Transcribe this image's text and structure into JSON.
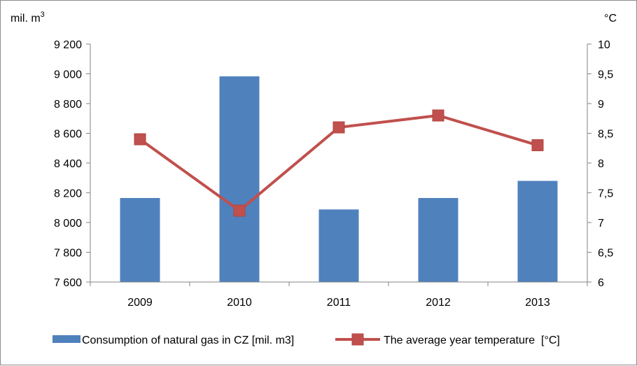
{
  "chart_data": {
    "type": "bar",
    "categories": [
      "2009",
      "2010",
      "2011",
      "2012",
      "2013"
    ],
    "series": [
      {
        "name": "Consumption of natural gas in CZ [mil. m3]",
        "type": "bar",
        "axis": "left",
        "color": "#4F81BD",
        "values": [
          8165,
          8983,
          8088,
          8165,
          8280
        ]
      },
      {
        "name": "The average year temperature  [°C]",
        "type": "line",
        "axis": "right",
        "color": "#C0504D",
        "values": [
          8.4,
          7.2,
          8.6,
          8.8,
          8.3
        ]
      }
    ],
    "y_left": {
      "unit_main": "mil. m",
      "unit_sup": "3",
      "ylim": [
        7600,
        9200
      ],
      "ticks": [
        7600,
        7800,
        8000,
        8200,
        8400,
        8600,
        8800,
        9000,
        9200
      ],
      "tick_labels": [
        "7 600",
        "7 800",
        "8 000",
        "8 200",
        "8 400",
        "8 600",
        "8 800",
        "9 000",
        "9 200"
      ]
    },
    "y_right": {
      "unit": "°C",
      "ylim": [
        6,
        10
      ],
      "ticks": [
        6,
        6.5,
        7,
        7.5,
        8,
        8.5,
        9,
        9.5,
        10
      ],
      "tick_labels": [
        "6",
        "6,5",
        "7",
        "7,5",
        "8",
        "8,5",
        "9",
        "9,5",
        "10"
      ]
    },
    "grid": false,
    "legend_position": "bottom"
  }
}
